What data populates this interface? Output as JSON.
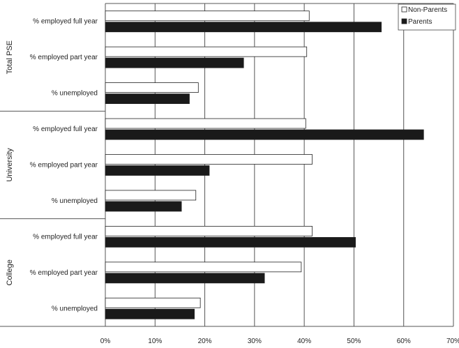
{
  "chart_data": {
    "type": "bar",
    "orientation": "horizontal",
    "groups": [
      {
        "name": "Total PSE",
        "categories": [
          "% employed full year",
          "% employed part year",
          "% unemployed"
        ],
        "series": [
          {
            "name": "Non-Parents",
            "values": [
              41.0,
              40.5,
              18.7
            ]
          },
          {
            "name": "Parents",
            "values": [
              55.5,
              27.8,
              16.9
            ]
          }
        ]
      },
      {
        "name": "University",
        "categories": [
          "% employed full year",
          "% employed part year",
          "% unemployed"
        ],
        "series": [
          {
            "name": "Non-Parents",
            "values": [
              40.3,
              41.6,
              18.2
            ]
          },
          {
            "name": "Parents",
            "values": [
              64.0,
              20.9,
              15.3
            ]
          }
        ]
      },
      {
        "name": "College",
        "categories": [
          "% employed full year",
          "% employed part year",
          "% unemployed"
        ],
        "series": [
          {
            "name": "Non-Parents",
            "values": [
              41.6,
              39.4,
              19.1
            ]
          },
          {
            "name": "Parents",
            "values": [
              50.3,
              32.0,
              17.9
            ]
          }
        ]
      }
    ],
    "xaxis": {
      "ticks": [
        0,
        10,
        20,
        30,
        40,
        50,
        60,
        70
      ],
      "tick_labels": [
        "0%",
        "10%",
        "20%",
        "30%",
        "40%",
        "50%",
        "60%",
        "70%"
      ],
      "xlim": [
        0,
        70
      ]
    },
    "legend": {
      "position": "top-right",
      "entries": [
        "Non-Parents",
        "Parents"
      ]
    },
    "grid": true,
    "colors": {
      "Non-Parents": "#ffffff",
      "Parents": "#1a1a1a",
      "bar_border": "#222222",
      "grid": "#555555"
    }
  }
}
